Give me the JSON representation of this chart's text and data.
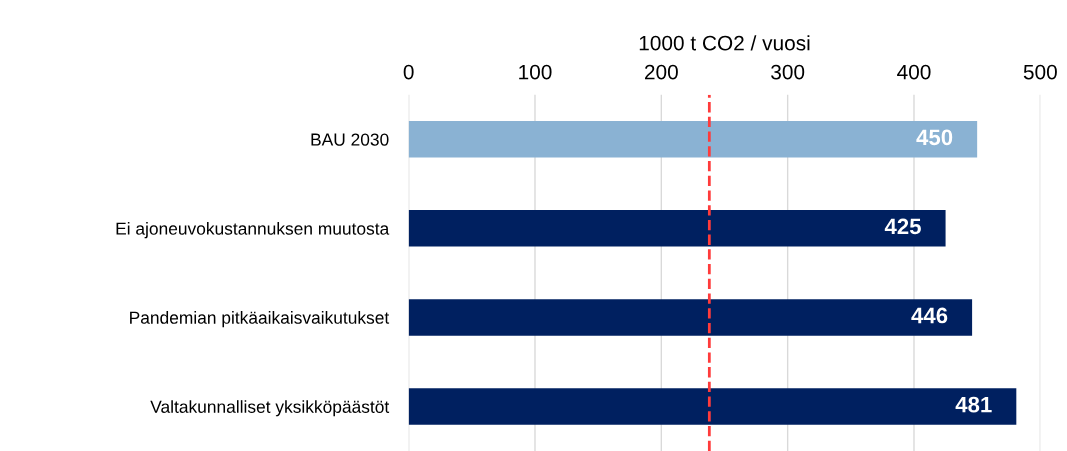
{
  "chart_data": {
    "type": "bar",
    "orientation": "horizontal",
    "xlabel": "1000 t CO2 / vuosi",
    "categories": [
      "BAU 2030",
      "Ei ajoneuvokustannuksen muutosta",
      "Pandemian pitkäaikaisvaikutukset",
      "Valtakunnalliset yksikköpäästöt"
    ],
    "values": [
      450,
      425,
      446,
      481
    ],
    "colors": [
      "#8ab2d3",
      "#002060",
      "#002060",
      "#002060"
    ],
    "xlim": [
      0,
      500
    ],
    "xticks": [
      0,
      100,
      200,
      300,
      400,
      500
    ],
    "grid": "x",
    "data_labels": true,
    "ref_lines": [
      {
        "axis": "x",
        "value": 238,
        "color": "#ff3b3b",
        "line_style": "dashed"
      }
    ]
  }
}
